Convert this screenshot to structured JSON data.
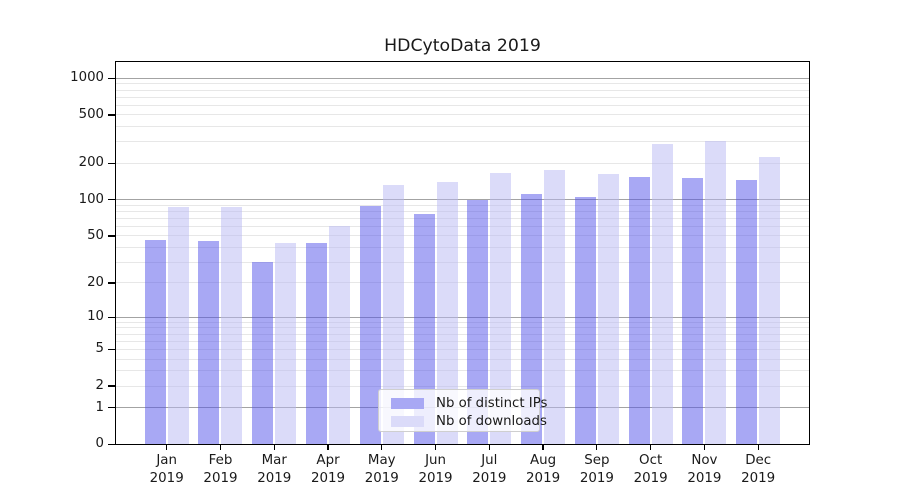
{
  "title": "HDCytoData 2019",
  "chart_data": {
    "type": "bar",
    "title": "HDCytoData 2019",
    "categories": [
      "Jan",
      "Feb",
      "Mar",
      "Apr",
      "May",
      "Jun",
      "Jul",
      "Aug",
      "Sep",
      "Oct",
      "Nov",
      "Dec"
    ],
    "year_label": "2019",
    "series": [
      {
        "name": "Nb of distinct IPs",
        "color": "#a8a8f4",
        "values": [
          46,
          45,
          30,
          44,
          89,
          76,
          100,
          111,
          105,
          153,
          150,
          146
        ]
      },
      {
        "name": "Nb of downloads",
        "color": "#dbdbf9",
        "values": [
          87,
          87,
          44,
          60,
          132,
          140,
          167,
          175,
          162,
          287,
          307,
          227
        ]
      }
    ],
    "y_ticks": [
      0,
      1,
      2,
      5,
      10,
      20,
      50,
      100,
      200,
      500,
      1000
    ],
    "y_scale": "log10(1+v)",
    "ylim": [
      0,
      1390
    ],
    "xlabel": "",
    "ylabel": "",
    "grid": "on",
    "legend_position": "inside-bottom-center"
  },
  "colors": {
    "background": "#ffffff",
    "major_grid": "#a3a3a3",
    "minor_grid": "#e7e7e7",
    "axis": "#000000",
    "text": "#1a1a1a",
    "legend_border": "#cfcfcf"
  }
}
